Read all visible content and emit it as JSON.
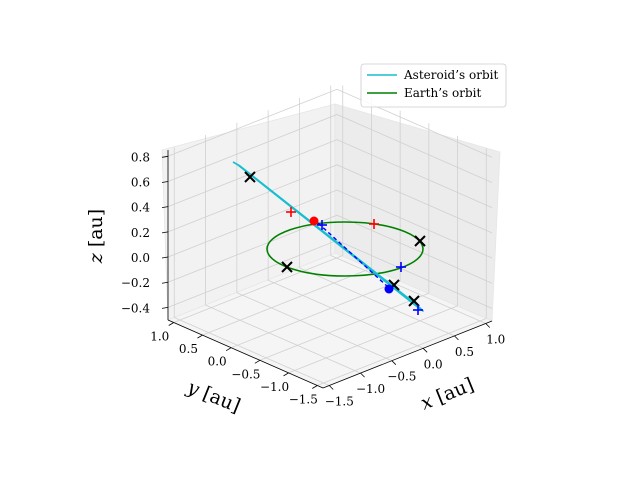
{
  "chart_data": {
    "type": "line3d",
    "title": "",
    "xlabel": "$x$ [au]",
    "ylabel": "$y$ [au]",
    "zlabel": "$z$ [au]",
    "xlabel_text": "x [au]",
    "ylabel_text": "y [au]",
    "zlabel_text": "z [au]",
    "xlim": [
      -1.6,
      1.1
    ],
    "ylim": [
      -1.6,
      1.1
    ],
    "zlim": [
      -0.5,
      0.85
    ],
    "x_ticks": [
      "−1.5",
      "−1.0",
      "−0.5",
      "0.0",
      "0.5",
      "1.0"
    ],
    "y_ticks": [
      "−1.5",
      "−1.0",
      "−0.5",
      "0.0",
      "0.5",
      "1.0"
    ],
    "z_ticks": [
      "−0.4",
      "−0.2",
      "0.0",
      "0.2",
      "0.4",
      "0.6",
      "0.8"
    ],
    "grid": true,
    "legend_position": "upper-right",
    "series": [
      {
        "name": "Asteroid’s orbit",
        "color": "#17becf"
      },
      {
        "name": "Earth’s orbit",
        "color": "#008000"
      }
    ],
    "markers": {
      "cross_color": "#000000",
      "red_plus_color": "#ff0000",
      "blue_plus_color": "#0000ff",
      "red_dot_color": "#ff0000",
      "blue_dot_color": "#0000ff"
    }
  }
}
